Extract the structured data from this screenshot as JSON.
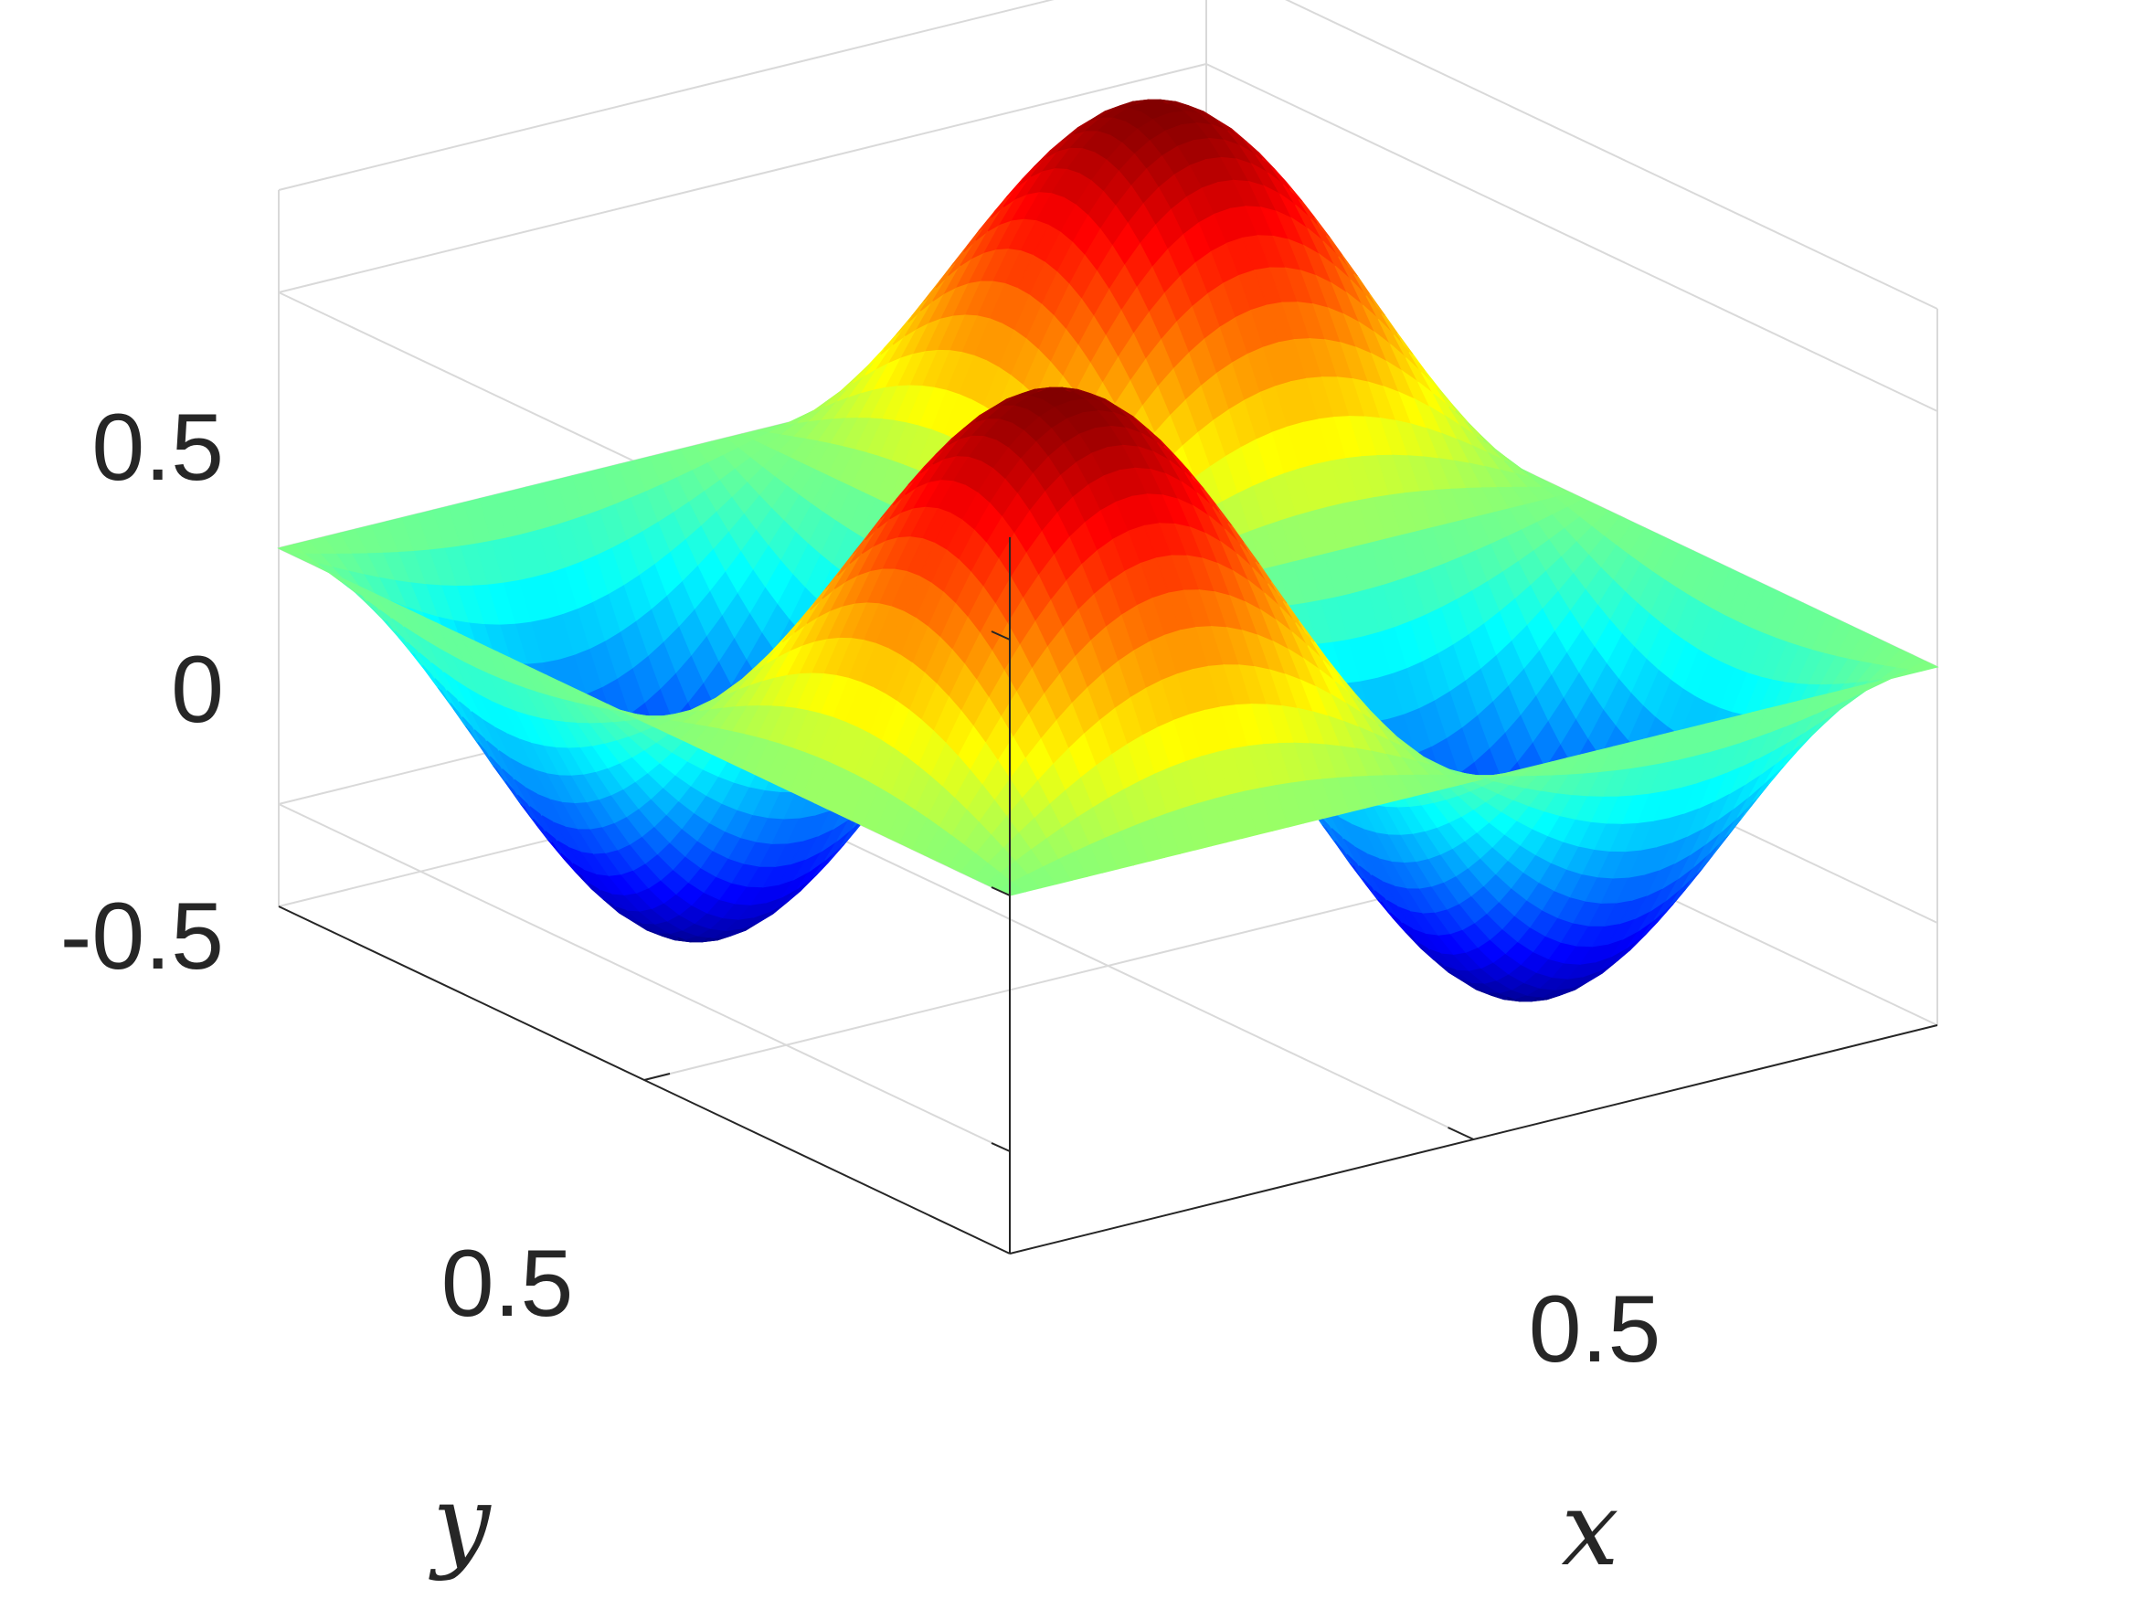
{
  "chart_data": {
    "type": "surface",
    "title": "",
    "xlabel": "x",
    "ylabel": "y",
    "zlabel": "",
    "xlim": [
      0,
      1
    ],
    "ylim": [
      0,
      1
    ],
    "zlim": [
      -0.7,
      0.7
    ],
    "xticks": [
      {
        "value": 0.5,
        "label": "0.5"
      }
    ],
    "yticks": [
      {
        "value": 0.5,
        "label": "0.5"
      }
    ],
    "zticks": [
      {
        "value": 0.5,
        "label": "0.5"
      },
      {
        "value": 0,
        "label": "0"
      },
      {
        "value": -0.5,
        "label": "-0.5"
      }
    ],
    "colormap": "jet",
    "grid": true,
    "function": "z = 0.7·sin(2πx)·sin(2πy) (approx.)",
    "amplitude": 0.7,
    "frequency_x": 2,
    "frequency_y": 2
  }
}
